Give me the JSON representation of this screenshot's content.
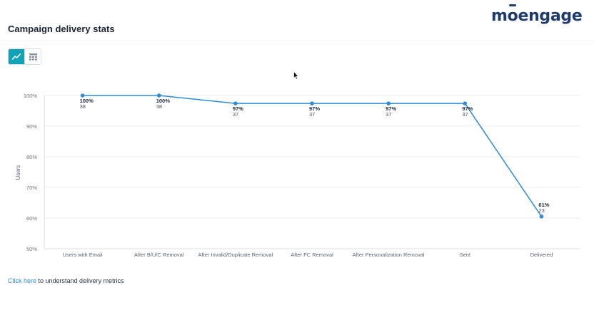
{
  "header": {
    "title": "Campaign delivery stats",
    "logo_text_pre": "m",
    "logo_text_o": "o",
    "logo_text_post": "engage"
  },
  "view_toggle": {
    "selected": "chart",
    "buttons": [
      {
        "name": "line-chart-icon",
        "active": true
      },
      {
        "name": "table-icon",
        "active": false
      }
    ],
    "active_color": "#11a3b5"
  },
  "chart_data": {
    "type": "line",
    "title": "",
    "xlabel": "",
    "ylabel": "Users",
    "ylim": [
      50,
      100
    ],
    "y_ticks": [
      "50%",
      "60%",
      "70%",
      "80%",
      "90%",
      "100%"
    ],
    "categories": [
      "Users with Email",
      "After B/U/C Removal",
      "After Invalid/Duplicate Removal",
      "After FC Removal",
      "After Personalization Removal",
      "Sent",
      "Delivered"
    ],
    "series": [
      {
        "values": [
          100,
          100,
          97.4,
          97.4,
          97.4,
          97.4,
          60.5
        ],
        "percent_labels": [
          "100%",
          "100%",
          "97%",
          "97%",
          "97%",
          "97%",
          "61%"
        ],
        "count_labels": [
          "38",
          "38",
          "37",
          "37",
          "37",
          "37",
          "23"
        ],
        "color": "#2e8bd6"
      }
    ],
    "grid": true
  },
  "footer": {
    "link_text": "Click here",
    "rest_text": " to understand delivery metrics"
  }
}
